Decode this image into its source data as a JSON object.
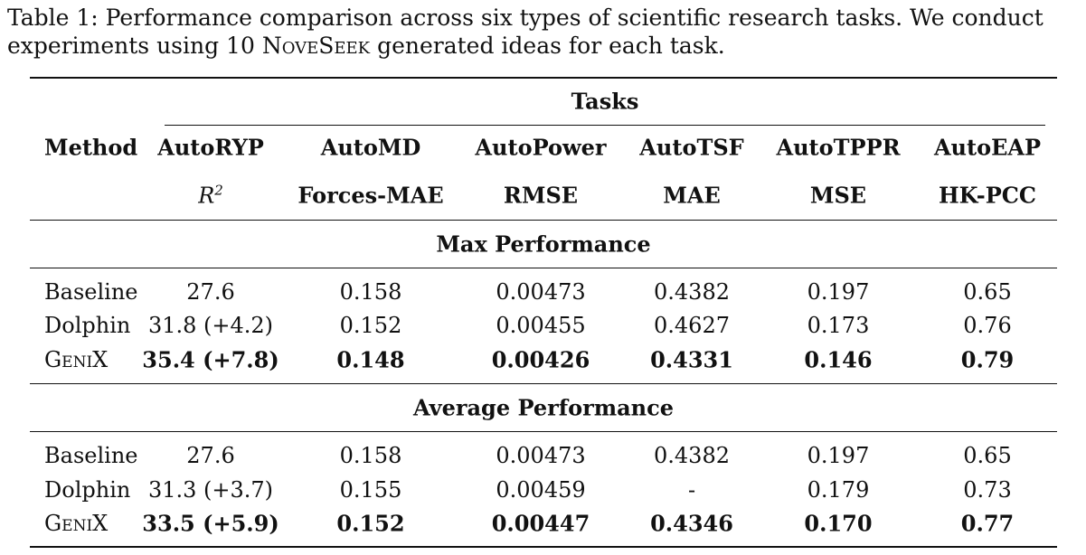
{
  "caption": {
    "prefix": "Table 1: Performance comparison across six types of scientific research tasks. We conduct experiments using 10 ",
    "brand": "NoveSeek",
    "suffix": " generated ideas for each task."
  },
  "table": {
    "group_header": "Tasks",
    "method_header": "Method",
    "tasks": [
      "AutoRYP",
      "AutoMD",
      "AutoPower",
      "AutoTSF",
      "AutoTPPR",
      "AutoEAP"
    ],
    "metrics": [
      "R²",
      "Forces-MAE",
      "RMSE",
      "MAE",
      "MSE",
      "HK-PCC"
    ],
    "sections": [
      {
        "title": "Max Performance",
        "rows": [
          {
            "method": "Baseline",
            "values": [
              "27.6",
              "0.158",
              "0.00473",
              "0.4382",
              "0.197",
              "0.65"
            ],
            "bold": false
          },
          {
            "method": "Dolphin",
            "values": [
              "31.8 (+4.2)",
              "0.152",
              "0.00455",
              "0.4627",
              "0.173",
              "0.76"
            ],
            "bold": false
          },
          {
            "method": "GeniX",
            "values": [
              "35.4 (+7.8)",
              "0.148",
              "0.00426",
              "0.4331",
              "0.146",
              "0.79"
            ],
            "bold": true
          }
        ]
      },
      {
        "title": "Average Performance",
        "rows": [
          {
            "method": "Baseline",
            "values": [
              "27.6",
              "0.158",
              "0.00473",
              "0.4382",
              "0.197",
              "0.65"
            ],
            "bold": false
          },
          {
            "method": "Dolphin",
            "values": [
              "31.3 (+3.7)",
              "0.155",
              "0.00459",
              "-",
              "0.179",
              "0.73"
            ],
            "bold": false
          },
          {
            "method": "GeniX",
            "values": [
              "33.5 (+5.9)",
              "0.152",
              "0.00447",
              "0.4346",
              "0.170",
              "0.77"
            ],
            "bold": true
          }
        ]
      }
    ]
  }
}
